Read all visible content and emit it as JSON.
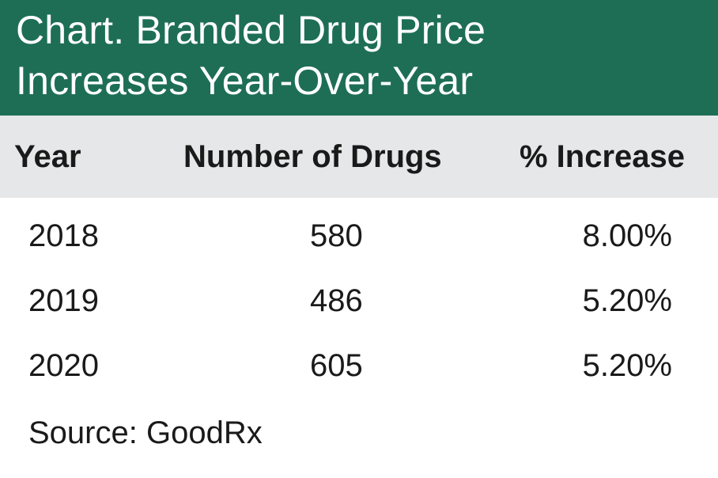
{
  "chart_data": {
    "type": "table",
    "title_lines": [
      "Chart. Branded Drug Price",
      "Increases Year-Over-Year"
    ],
    "columns": [
      "Year",
      "Number of Drugs",
      "% Increase"
    ],
    "rows": [
      {
        "year": "2018",
        "number_of_drugs": "580",
        "pct_increase": "8.00%"
      },
      {
        "year": "2019",
        "number_of_drugs": "486",
        "pct_increase": "5.20%"
      },
      {
        "year": "2020",
        "number_of_drugs": "605",
        "pct_increase": "5.20%"
      }
    ],
    "source": "Source: GoodRx"
  },
  "colors": {
    "title_background": "#1e6e56",
    "header_background": "#e6e7e8",
    "title_text": "#ffffff",
    "body_text": "#1a1a1a"
  }
}
